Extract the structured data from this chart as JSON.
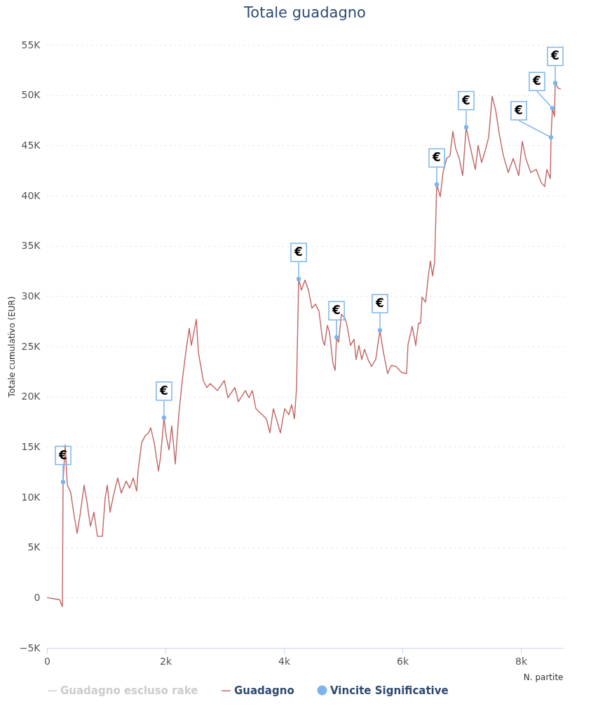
{
  "chart_data": {
    "type": "line",
    "title": "Totale guadagno",
    "xlabel": "N. partite",
    "ylabel": "Totale cumulativo (EUR)",
    "xlim": [
      0,
      8710
    ],
    "ylim": [
      -5000,
      55000
    ],
    "xticks": [
      0,
      {
        "value": 2000,
        "label": "2k"
      },
      {
        "value": 4000,
        "label": "4k"
      },
      {
        "value": 6000,
        "label": "6k"
      },
      {
        "value": 8000,
        "label": "8k"
      }
    ],
    "yticks": [
      {
        "value": -5000,
        "label": "−5K"
      },
      0,
      {
        "value": 5000,
        "label": "5K"
      },
      {
        "value": 10000,
        "label": "10K"
      },
      {
        "value": 15000,
        "label": "15K"
      },
      {
        "value": 20000,
        "label": "20K"
      },
      {
        "value": 25000,
        "label": "25K"
      },
      {
        "value": 30000,
        "label": "30K"
      },
      {
        "value": 35000,
        "label": "35K"
      },
      {
        "value": 40000,
        "label": "40K"
      },
      {
        "value": 45000,
        "label": "45K"
      },
      {
        "value": 50000,
        "label": "50K"
      },
      {
        "value": 55000,
        "label": "55K"
      }
    ],
    "grid": "y",
    "legend": "bottom",
    "series": [
      {
        "name": "Guadagno escluso rake",
        "color": "#cccccc"
      },
      {
        "name": "Guadagno",
        "color": "#c06464",
        "x": [
          0,
          213,
          260,
          272,
          308,
          343,
          400,
          450,
          509,
          556,
          627,
          675,
          734,
          793,
          852,
          935,
          982,
          1018,
          1065,
          1124,
          1195,
          1254,
          1337,
          1396,
          1456,
          1515,
          1538,
          1598,
          1657,
          1716,
          1751,
          1811,
          1882,
          1917,
          1976,
          2012,
          2059,
          2107,
          2166,
          2225,
          2284,
          2343,
          2402,
          2438,
          2521,
          2556,
          2639,
          2698,
          2757,
          2876,
          2994,
          3053,
          3172,
          3231,
          3349,
          3408,
          3467,
          3527,
          3704,
          3763,
          3822,
          3941,
          4012,
          4083,
          4130,
          4178,
          4213,
          4249,
          4296,
          4355,
          4414,
          4473,
          4533,
          4592,
          4651,
          4686,
          4734,
          4769,
          4828,
          4864,
          4888,
          4923,
          4970,
          5030,
          5065,
          5124,
          5183,
          5219,
          5266,
          5314,
          5361,
          5420,
          5479,
          5550,
          5621,
          5680,
          5751,
          5811,
          5893,
          5988,
          6071,
          6095,
          6166,
          6225,
          6272,
          6308,
          6331,
          6391,
          6438,
          6473,
          6509,
          6544,
          6580,
          6639,
          6686,
          6746,
          6805,
          6852,
          6899,
          6959,
          7018,
          7077,
          7136,
          7231,
          7278,
          7337,
          7396,
          7456,
          7515,
          7574,
          7645,
          7704,
          7787,
          7870,
          7964,
          8024,
          8083,
          8166,
          8260,
          8343,
          8402,
          8438,
          8497,
          8509,
          8533,
          8568,
          8580,
          8627,
          8675
        ],
        "values": [
          0,
          -200,
          -900,
          11500,
          15200,
          11200,
          10500,
          8500,
          6400,
          8100,
          11200,
          9500,
          7100,
          8500,
          6100,
          6100,
          9900,
          11200,
          8500,
          10200,
          11900,
          10400,
          11600,
          10900,
          11900,
          10600,
          12600,
          15400,
          16100,
          16400,
          16900,
          15400,
          12600,
          14000,
          17900,
          16100,
          14700,
          17100,
          13300,
          18200,
          21600,
          24400,
          26800,
          25100,
          27700,
          24400,
          21600,
          20900,
          21300,
          20600,
          21600,
          19900,
          20900,
          19500,
          20600,
          19900,
          20600,
          18800,
          17800,
          16400,
          18800,
          16400,
          18800,
          18200,
          19200,
          17800,
          20900,
          31700,
          30600,
          31600,
          30600,
          28800,
          29200,
          28500,
          25700,
          25100,
          27100,
          26400,
          23300,
          22600,
          25900,
          25400,
          28200,
          27800,
          27100,
          25100,
          25700,
          23700,
          25100,
          23700,
          24700,
          23700,
          23000,
          23700,
          26600,
          24400,
          22300,
          23100,
          23000,
          22400,
          22300,
          25200,
          27000,
          25100,
          27300,
          27300,
          29900,
          29400,
          32000,
          33500,
          32000,
          33400,
          41100,
          39900,
          42300,
          43700,
          44000,
          46400,
          44700,
          43700,
          42000,
          46800,
          45100,
          42600,
          45000,
          43300,
          44400,
          45800,
          49900,
          48500,
          45800,
          44000,
          42300,
          43700,
          42000,
          45400,
          43700,
          42300,
          42600,
          41300,
          40900,
          42600,
          41700,
          45800,
          48700,
          47900,
          51200,
          50700,
          50600
        ]
      },
      {
        "name": "Vincite Significative",
        "type": "scatter",
        "color": "#7cb5ec",
        "x": [
          272,
          1976,
          4249,
          4888,
          5621,
          6580,
          7077,
          8509,
          8533,
          8580
        ],
        "values": [
          11500,
          17900,
          31700,
          25900,
          26600,
          41100,
          46800,
          45800,
          48700,
          51200
        ]
      }
    ],
    "annotations": [
      {
        "text": "€",
        "x": 272,
        "y": 11500
      },
      {
        "text": "€",
        "x": 1976,
        "y": 17900
      },
      {
        "text": "€",
        "x": 4249,
        "y": 31700
      },
      {
        "text": "€",
        "x": 4888,
        "y": 25900
      },
      {
        "text": "€",
        "x": 5621,
        "y": 26600
      },
      {
        "text": "€",
        "x": 6580,
        "y": 41100
      },
      {
        "text": "€",
        "x": 7077,
        "y": 46800
      },
      {
        "text": "€",
        "x": 8509,
        "y": 45800
      },
      {
        "text": "€",
        "x": 8533,
        "y": 48700
      },
      {
        "text": "€",
        "x": 8580,
        "y": 51200
      }
    ]
  }
}
